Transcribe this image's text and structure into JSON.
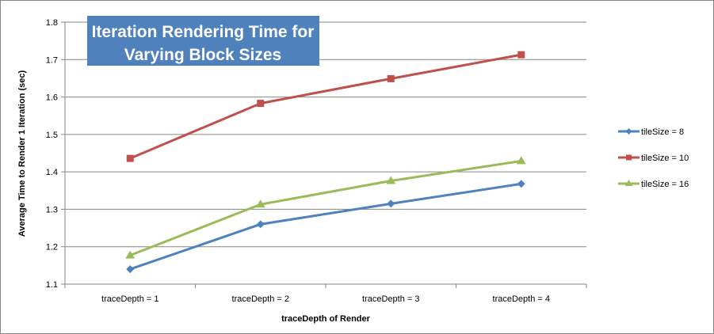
{
  "chart_data": {
    "type": "line",
    "title_lines": [
      "Iteration Rendering Time for",
      "Varying Block Sizes"
    ],
    "xlabel": "traceDepth of Render",
    "ylabel": "Average Time to Render 1 Iteration (sec)",
    "categories": [
      "traceDepth = 1",
      "traceDepth = 2",
      "traceDepth = 3",
      "traceDepth = 4"
    ],
    "ylim": [
      1.1,
      1.8
    ],
    "yticks": [
      "1.1",
      "1.2",
      "1.3",
      "1.4",
      "1.5",
      "1.6",
      "1.7",
      "1.8"
    ],
    "grid": true,
    "legend_position": "right",
    "title_box_color": "#4F81BD",
    "series": [
      {
        "name": "tileSize = 8",
        "color": "#4F81BD",
        "marker": "diamond",
        "values": [
          1.14,
          1.26,
          1.315,
          1.368
        ]
      },
      {
        "name": "tileSize = 10",
        "color": "#C0504D",
        "marker": "square",
        "values": [
          1.436,
          1.583,
          1.649,
          1.713
        ]
      },
      {
        "name": "tileSize = 16",
        "color": "#9BBB59",
        "marker": "triangle",
        "values": [
          1.177,
          1.313,
          1.376,
          1.429
        ]
      }
    ]
  }
}
